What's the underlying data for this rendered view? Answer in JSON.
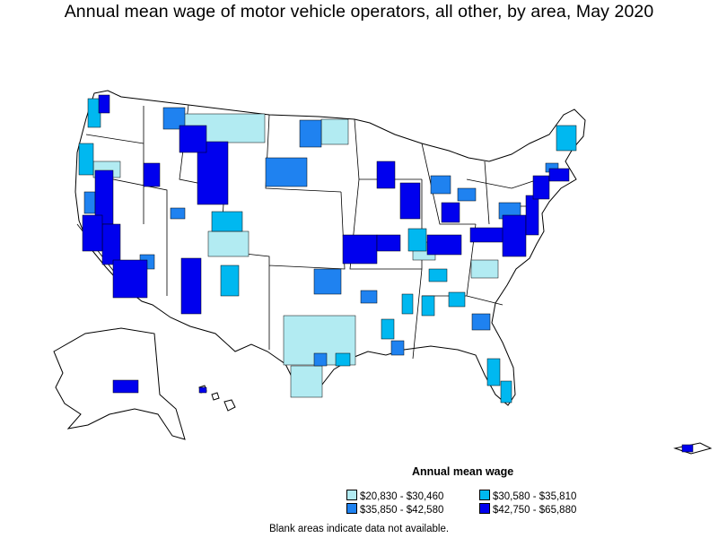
{
  "title": "Annual mean wage of motor vehicle operators, all other, by area, May 2020",
  "legend": {
    "title": "Annual mean wage",
    "items": [
      {
        "label": "$20,830 - $30,460",
        "color": "#b2ebf2"
      },
      {
        "label": "$30,580 - $35,810",
        "color": "#00b8f0"
      },
      {
        "label": "$35,850 - $42,580",
        "color": "#1f82f0"
      },
      {
        "label": "$42,750 - $65,880",
        "color": "#0000ee"
      }
    ]
  },
  "note": "Blank areas indicate data not available.",
  "colors": {
    "background": "#ffffff",
    "outline": "#000000",
    "no_data": "#ffffff"
  }
}
